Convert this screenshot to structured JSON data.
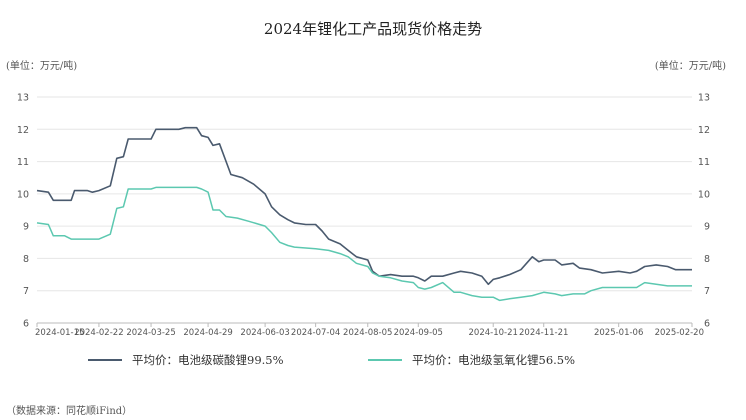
{
  "chart_data": {
    "type": "line",
    "title": "2024年锂化工产品现货价格走势",
    "unit_left": "(单位：万元/吨)",
    "unit_right": "(单位：万元/吨)",
    "ylim": [
      6,
      13
    ],
    "yticks": [
      6,
      7,
      8,
      9,
      10,
      11,
      12,
      13
    ],
    "x_tick_labels": [
      "2024-01-15",
      "2024-02-22",
      "2024-03-25",
      "2024-04-29",
      "2024-06-03",
      "2024-07-04",
      "2024-08-05",
      "2024-09-05",
      "2024-10-21",
      "2024-11-21",
      "2025-01-06",
      "2025-02-20"
    ],
    "x_tick_dates": [
      "2024-01-15",
      "2024-02-22",
      "2024-03-25",
      "2024-04-29",
      "2024-06-03",
      "2024-07-04",
      "2024-08-05",
      "2024-09-05",
      "2024-10-21",
      "2024-11-21",
      "2025-01-06",
      "2025-02-20"
    ],
    "series": [
      {
        "name": "平均价：电池级碳酸锂99.5%",
        "color": "#4a5a6e",
        "points": [
          [
            "2024-01-15",
            10.1
          ],
          [
            "2024-01-22",
            10.05
          ],
          [
            "2024-01-25",
            9.8
          ],
          [
            "2024-02-01",
            9.8
          ],
          [
            "2024-02-05",
            9.8
          ],
          [
            "2024-02-07",
            10.1
          ],
          [
            "2024-02-15",
            10.1
          ],
          [
            "2024-02-18",
            10.05
          ],
          [
            "2024-02-22",
            10.1
          ],
          [
            "2024-02-29",
            10.25
          ],
          [
            "2024-03-04",
            11.1
          ],
          [
            "2024-03-08",
            11.15
          ],
          [
            "2024-03-11",
            11.7
          ],
          [
            "2024-03-18",
            11.7
          ],
          [
            "2024-03-25",
            11.7
          ],
          [
            "2024-03-28",
            12.0
          ],
          [
            "2024-04-04",
            12.0
          ],
          [
            "2024-04-11",
            12.0
          ],
          [
            "2024-04-15",
            12.05
          ],
          [
            "2024-04-22",
            12.05
          ],
          [
            "2024-04-25",
            11.8
          ],
          [
            "2024-04-29",
            11.75
          ],
          [
            "2024-05-02",
            11.5
          ],
          [
            "2024-05-06",
            11.55
          ],
          [
            "2024-05-13",
            10.6
          ],
          [
            "2024-05-20",
            10.5
          ],
          [
            "2024-05-27",
            10.3
          ],
          [
            "2024-06-03",
            10.0
          ],
          [
            "2024-06-07",
            9.6
          ],
          [
            "2024-06-12",
            9.35
          ],
          [
            "2024-06-17",
            9.2
          ],
          [
            "2024-06-21",
            9.1
          ],
          [
            "2024-06-28",
            9.05
          ],
          [
            "2024-07-04",
            9.05
          ],
          [
            "2024-07-08",
            8.85
          ],
          [
            "2024-07-12",
            8.6
          ],
          [
            "2024-07-19",
            8.45
          ],
          [
            "2024-07-24",
            8.25
          ],
          [
            "2024-07-29",
            8.05
          ],
          [
            "2024-08-05",
            7.95
          ],
          [
            "2024-08-08",
            7.6
          ],
          [
            "2024-08-12",
            7.45
          ],
          [
            "2024-08-19",
            7.5
          ],
          [
            "2024-08-26",
            7.45
          ],
          [
            "2024-09-02",
            7.45
          ],
          [
            "2024-09-05",
            7.4
          ],
          [
            "2024-09-09",
            7.3
          ],
          [
            "2024-09-13",
            7.45
          ],
          [
            "2024-09-20",
            7.45
          ],
          [
            "2024-09-27",
            7.55
          ],
          [
            "2024-10-01",
            7.6
          ],
          [
            "2024-10-08",
            7.55
          ],
          [
            "2024-10-14",
            7.45
          ],
          [
            "2024-10-18",
            7.2
          ],
          [
            "2024-10-21",
            7.35
          ],
          [
            "2024-10-25",
            7.4
          ],
          [
            "2024-10-31",
            7.5
          ],
          [
            "2024-11-07",
            7.65
          ],
          [
            "2024-11-14",
            8.05
          ],
          [
            "2024-11-18",
            7.9
          ],
          [
            "2024-11-21",
            7.95
          ],
          [
            "2024-11-28",
            7.95
          ],
          [
            "2024-12-02",
            7.8
          ],
          [
            "2024-12-09",
            7.85
          ],
          [
            "2024-12-13",
            7.7
          ],
          [
            "2024-12-20",
            7.65
          ],
          [
            "2024-12-27",
            7.55
          ],
          [
            "2025-01-06",
            7.6
          ],
          [
            "2025-01-13",
            7.55
          ],
          [
            "2025-01-17",
            7.6
          ],
          [
            "2025-01-22",
            7.75
          ],
          [
            "2025-01-29",
            7.8
          ],
          [
            "2025-02-05",
            7.75
          ],
          [
            "2025-02-10",
            7.65
          ],
          [
            "2025-02-20",
            7.65
          ]
        ]
      },
      {
        "name": "平均价：电池级氢氧化锂56.5%",
        "color": "#5cc8b0",
        "points": [
          [
            "2024-01-15",
            9.1
          ],
          [
            "2024-01-22",
            9.05
          ],
          [
            "2024-01-25",
            8.7
          ],
          [
            "2024-02-01",
            8.7
          ],
          [
            "2024-02-05",
            8.6
          ],
          [
            "2024-02-15",
            8.6
          ],
          [
            "2024-02-22",
            8.6
          ],
          [
            "2024-02-29",
            8.75
          ],
          [
            "2024-03-04",
            9.55
          ],
          [
            "2024-03-08",
            9.6
          ],
          [
            "2024-03-11",
            10.15
          ],
          [
            "2024-03-18",
            10.15
          ],
          [
            "2024-03-25",
            10.15
          ],
          [
            "2024-03-28",
            10.2
          ],
          [
            "2024-04-11",
            10.2
          ],
          [
            "2024-04-22",
            10.2
          ],
          [
            "2024-04-25",
            10.15
          ],
          [
            "2024-04-29",
            10.05
          ],
          [
            "2024-05-02",
            9.5
          ],
          [
            "2024-05-06",
            9.5
          ],
          [
            "2024-05-10",
            9.3
          ],
          [
            "2024-05-17",
            9.25
          ],
          [
            "2024-05-24",
            9.15
          ],
          [
            "2024-06-03",
            9.0
          ],
          [
            "2024-06-07",
            8.8
          ],
          [
            "2024-06-12",
            8.5
          ],
          [
            "2024-06-17",
            8.4
          ],
          [
            "2024-06-21",
            8.35
          ],
          [
            "2024-07-04",
            8.3
          ],
          [
            "2024-07-12",
            8.25
          ],
          [
            "2024-07-19",
            8.15
          ],
          [
            "2024-07-24",
            8.05
          ],
          [
            "2024-07-29",
            7.85
          ],
          [
            "2024-08-05",
            7.75
          ],
          [
            "2024-08-08",
            7.55
          ],
          [
            "2024-08-12",
            7.45
          ],
          [
            "2024-08-19",
            7.4
          ],
          [
            "2024-08-26",
            7.3
          ],
          [
            "2024-09-02",
            7.25
          ],
          [
            "2024-09-05",
            7.1
          ],
          [
            "2024-09-09",
            7.05
          ],
          [
            "2024-09-13",
            7.1
          ],
          [
            "2024-09-20",
            7.25
          ],
          [
            "2024-09-27",
            6.95
          ],
          [
            "2024-10-01",
            6.95
          ],
          [
            "2024-10-08",
            6.85
          ],
          [
            "2024-10-14",
            6.8
          ],
          [
            "2024-10-21",
            6.8
          ],
          [
            "2024-10-25",
            6.7
          ],
          [
            "2024-10-31",
            6.75
          ],
          [
            "2024-11-07",
            6.8
          ],
          [
            "2024-11-14",
            6.85
          ],
          [
            "2024-11-21",
            6.95
          ],
          [
            "2024-11-28",
            6.9
          ],
          [
            "2024-12-02",
            6.85
          ],
          [
            "2024-12-09",
            6.9
          ],
          [
            "2024-12-16",
            6.9
          ],
          [
            "2024-12-20",
            7.0
          ],
          [
            "2024-12-27",
            7.1
          ],
          [
            "2025-01-06",
            7.1
          ],
          [
            "2025-01-13",
            7.1
          ],
          [
            "2025-01-17",
            7.1
          ],
          [
            "2025-01-22",
            7.25
          ],
          [
            "2025-01-29",
            7.2
          ],
          [
            "2025-02-05",
            7.15
          ],
          [
            "2025-02-20",
            7.15
          ]
        ]
      }
    ],
    "grid": "horizontal",
    "legend_position": "bottom"
  },
  "source": "（数据来源：同花顺iFind）"
}
